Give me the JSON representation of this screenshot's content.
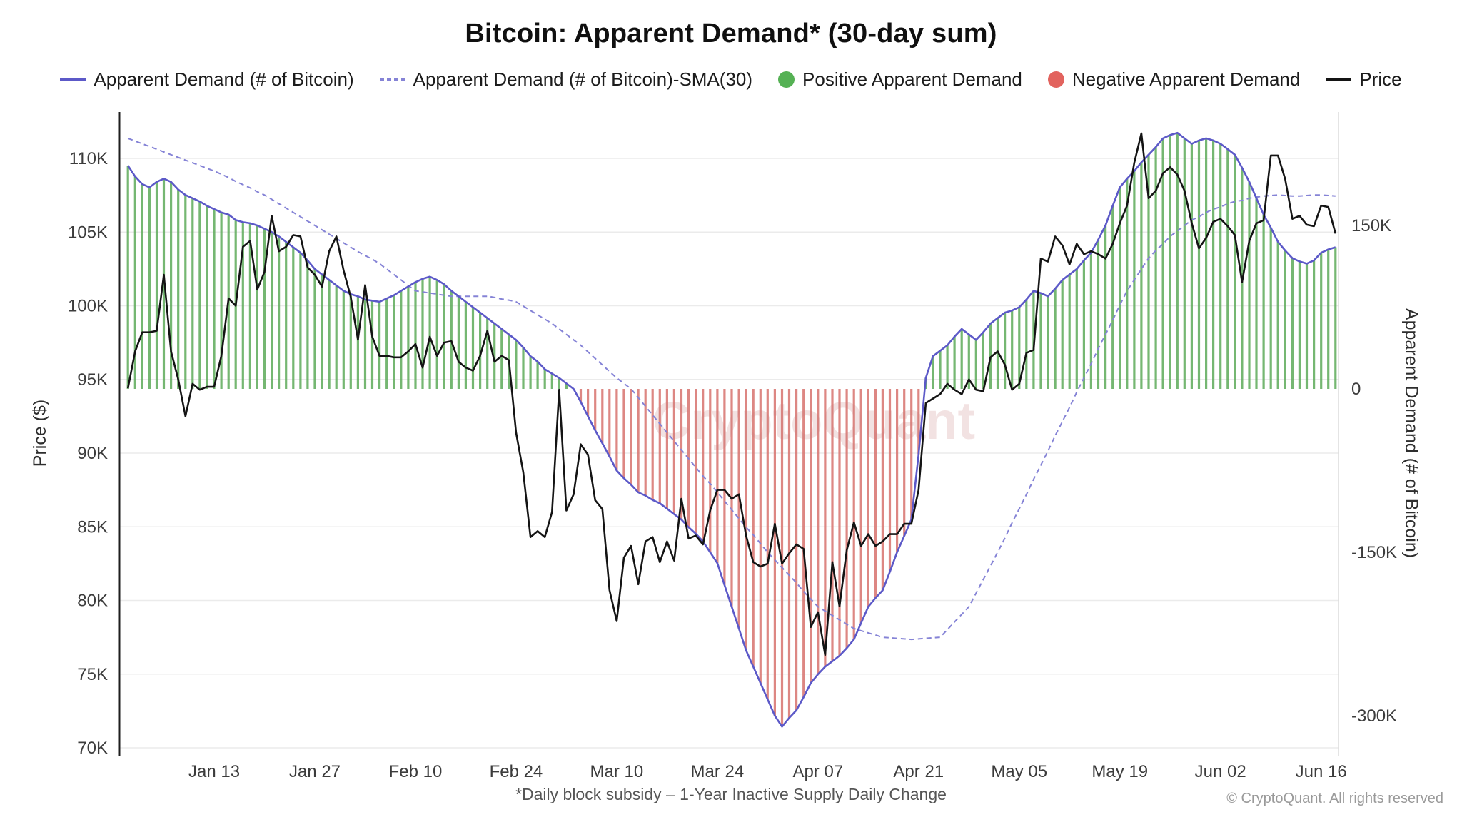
{
  "title": "Bitcoin: Apparent Demand* (30-day sum)",
  "watermark": "CryptoQuant",
  "footnote": "*Daily block subsidy – 1-Year Inactive Supply Daily Change",
  "copyright": "© CryptoQuant. All rights reserved",
  "legend": {
    "items": [
      {
        "id": "apparent-demand",
        "label": "Apparent Demand (# of Bitcoin)",
        "marker": "line",
        "color": "#5c59c8"
      },
      {
        "id": "apparent-demand-sma30",
        "label": "Apparent Demand (# of Bitcoin)-SMA(30)",
        "marker": "dashed-line",
        "color": "#8583d6"
      },
      {
        "id": "positive-apparent-demand",
        "label": "Positive Apparent Demand",
        "marker": "dot",
        "color": "#55b154"
      },
      {
        "id": "negative-apparent-demand",
        "label": "Negative Apparent Demand",
        "marker": "dot",
        "color": "#e2635e"
      },
      {
        "id": "price",
        "label": "Price",
        "marker": "line",
        "color": "#141414"
      }
    ]
  },
  "left_axis": {
    "label": "Price ($)",
    "ticks": [
      {
        "label": "110K",
        "value": 110
      },
      {
        "label": "105K",
        "value": 105
      },
      {
        "label": "100K",
        "value": 100
      },
      {
        "label": "95K",
        "value": 95
      },
      {
        "label": "90K",
        "value": 90
      },
      {
        "label": "85K",
        "value": 85
      },
      {
        "label": "80K",
        "value": 80
      },
      {
        "label": "75K",
        "value": 75
      },
      {
        "label": "70K",
        "value": 70
      }
    ]
  },
  "right_axis": {
    "label": "Apparent Demand (# of Bitcoin)",
    "ticks": [
      {
        "label": "150K",
        "value": 150
      },
      {
        "label": "0",
        "value": 0
      },
      {
        "label": "-150K",
        "value": -150
      },
      {
        "label": "-300K",
        "value": -300
      }
    ]
  },
  "x_axis": {
    "ticks": [
      {
        "label": "Jan 13",
        "date": "2025-01-13"
      },
      {
        "label": "Jan 27",
        "date": "2025-01-27"
      },
      {
        "label": "Feb 10",
        "date": "2025-02-10"
      },
      {
        "label": "Feb 24",
        "date": "2025-02-24"
      },
      {
        "label": "Mar 10",
        "date": "2025-03-10"
      },
      {
        "label": "Mar 24",
        "date": "2025-03-24"
      },
      {
        "label": "Apr 07",
        "date": "2025-04-07"
      },
      {
        "label": "Apr 21",
        "date": "2025-04-21"
      },
      {
        "label": "May 05",
        "date": "2025-05-05"
      },
      {
        "label": "May 19",
        "date": "2025-05-19"
      },
      {
        "label": "Jun 02",
        "date": "2025-06-02"
      },
      {
        "label": "Jun 16",
        "date": "2025-06-16"
      }
    ]
  },
  "chart_data": {
    "type": "composite",
    "x_start": "2025-01-01",
    "x_freq": "daily",
    "n_points": 169,
    "left_axis_label": "Price ($)",
    "left_axis_units": "thousand USD",
    "left_axis_range": [
      70,
      112.9
    ],
    "right_axis_label": "Apparent Demand (# of Bitcoin)",
    "right_axis_units": "thousand BTC (30-day sum)",
    "right_axis_range": [
      -331,
      250
    ],
    "grid": "horizontal",
    "legend_position": "top",
    "series": [
      {
        "name": "Apparent Demand (# of Bitcoin)",
        "type": "line",
        "axis": "right",
        "color": "#5c59c8",
        "values": [
          205,
          195,
          188,
          185,
          190,
          193,
          190,
          183,
          178,
          175,
          172,
          168,
          165,
          162,
          160,
          155,
          153,
          152,
          150,
          147,
          144,
          140,
          135,
          130,
          125,
          118,
          110,
          105,
          100,
          95,
          90,
          87,
          85,
          82,
          81,
          80,
          83,
          86,
          90,
          94,
          98,
          101,
          103,
          100,
          96,
          90,
          85,
          80,
          75,
          70,
          65,
          60,
          55,
          50,
          45,
          38,
          30,
          25,
          18,
          14,
          10,
          5,
          0,
          -12,
          -25,
          -38,
          -50,
          -62,
          -75,
          -82,
          -88,
          -95,
          -98,
          -102,
          -105,
          -110,
          -115,
          -120,
          -127,
          -133,
          -140,
          -150,
          -160,
          -180,
          -200,
          -220,
          -240,
          -255,
          -270,
          -285,
          -300,
          -310,
          -302,
          -295,
          -283,
          -270,
          -262,
          -255,
          -250,
          -245,
          -238,
          -230,
          -215,
          -200,
          -192,
          -185,
          -168,
          -150,
          -135,
          -120,
          -60,
          10,
          30,
          35,
          40,
          48,
          55,
          50,
          45,
          52,
          60,
          65,
          70,
          72,
          75,
          82,
          90,
          88,
          85,
          92,
          100,
          105,
          110,
          118,
          125,
          137,
          150,
          168,
          185,
          193,
          200,
          208,
          215,
          222,
          230,
          233,
          235,
          230,
          225,
          228,
          230,
          228,
          225,
          220,
          215,
          203,
          190,
          175,
          160,
          148,
          135,
          127,
          120,
          117,
          115,
          118,
          125,
          128,
          130
        ]
      },
      {
        "name": "Apparent Demand (# of Bitcoin)-SMA(30)",
        "type": "line",
        "style": "dashed",
        "axis": "right",
        "color": "#8583d6",
        "values": [
          230,
          227.5,
          225,
          222.5,
          220,
          217.5,
          215,
          212.5,
          210,
          207.5,
          205,
          202.5,
          200,
          197,
          194,
          190.5,
          187.5,
          184.5,
          181,
          178,
          174,
          170,
          166,
          162,
          158,
          154,
          150,
          146,
          142,
          138,
          134,
          130,
          126,
          122.5,
          119,
          115,
          110,
          105,
          100,
          95,
          90,
          89,
          88,
          87,
          86,
          85,
          85,
          85,
          85,
          85,
          85,
          84,
          82.5,
          81.5,
          80,
          76,
          72,
          68,
          64,
          60,
          55,
          50,
          45,
          40,
          34,
          28,
          22,
          16,
          10,
          5,
          0,
          -8,
          -16,
          -24,
          -32,
          -40,
          -48,
          -56,
          -64,
          -72,
          -80,
          -87,
          -95,
          -103,
          -111,
          -119,
          -127,
          -134,
          -142,
          -150,
          -157,
          -164,
          -171,
          -178,
          -186,
          -193,
          -200,
          -204,
          -208,
          -212,
          -216,
          -220,
          -222,
          -224,
          -226,
          -228,
          -228.5,
          -229,
          -229.5,
          -230,
          -229.5,
          -229,
          -228.5,
          -228,
          -221,
          -214,
          -207,
          -200,
          -187.5,
          -175,
          -162.5,
          -150,
          -137,
          -123,
          -110,
          -97,
          -83,
          -70,
          -57,
          -43,
          -30,
          -17,
          -3,
          10,
          23,
          37,
          50,
          63,
          77,
          90,
          100,
          110,
          120,
          127,
          133,
          140,
          145,
          150,
          155,
          158,
          162,
          165,
          167,
          170,
          172,
          173,
          175,
          176,
          177,
          177.5,
          178,
          177.5,
          177,
          177,
          177.5,
          178,
          178,
          177.5,
          177
        ]
      },
      {
        "name": "Apparent Demand bars (positive/negative)",
        "type": "bar",
        "axis": "right",
        "positive_color": "#5eab5a",
        "negative_color": "#d8736e",
        "values_ref": "Apparent Demand (# of Bitcoin)"
      },
      {
        "name": "Price",
        "type": "line",
        "axis": "left",
        "color": "#141414",
        "values": [
          94.4,
          96.9,
          98.2,
          98.2,
          98.3,
          102.1,
          96.9,
          95.0,
          92.5,
          94.7,
          94.3,
          94.5,
          94.5,
          96.6,
          100.5,
          100.0,
          104.0,
          104.4,
          101.1,
          102.3,
          106.1,
          103.7,
          104.0,
          104.8,
          104.7,
          102.6,
          102.1,
          101.3,
          103.7,
          104.7,
          102.4,
          100.6,
          97.7,
          101.4,
          97.9,
          96.6,
          96.6,
          96.5,
          96.5,
          96.9,
          97.4,
          95.8,
          97.9,
          96.6,
          97.5,
          97.6,
          96.2,
          95.8,
          95.6,
          96.6,
          98.3,
          96.2,
          96.6,
          96.3,
          91.4,
          88.7,
          84.3,
          84.7,
          84.3,
          86.0,
          94.3,
          86.1,
          87.2,
          90.6,
          89.9,
          86.8,
          86.2,
          80.7,
          78.6,
          82.9,
          83.7,
          81.1,
          84.0,
          84.3,
          82.6,
          84.0,
          82.7,
          86.9,
          84.2,
          84.4,
          83.8,
          86.1,
          87.5,
          87.5,
          86.9,
          87.2,
          84.4,
          82.6,
          82.3,
          82.5,
          85.2,
          82.5,
          83.2,
          83.8,
          83.5,
          78.2,
          79.2,
          76.3,
          82.6,
          79.6,
          83.4,
          85.3,
          83.7,
          84.5,
          83.7,
          84.0,
          84.5,
          84.5,
          85.2,
          85.2,
          87.5,
          93.4,
          93.7,
          94.0,
          94.7,
          94.3,
          94.0,
          95.0,
          94.3,
          94.2,
          96.5,
          96.9,
          96.0,
          94.3,
          94.7,
          96.8,
          97.0,
          103.2,
          103.0,
          104.7,
          104.1,
          102.8,
          104.2,
          103.5,
          103.7,
          103.5,
          103.2,
          104.2,
          105.6,
          106.8,
          109.7,
          111.7,
          107.3,
          107.8,
          109.0,
          109.4,
          108.9,
          107.8,
          105.6,
          103.9,
          104.6,
          105.7,
          105.9,
          105.4,
          104.8,
          101.6,
          104.4,
          105.6,
          105.8,
          110.2,
          110.2,
          108.6,
          105.9,
          106.1,
          105.5,
          105.4,
          106.8,
          106.7,
          104.9
        ]
      }
    ]
  }
}
